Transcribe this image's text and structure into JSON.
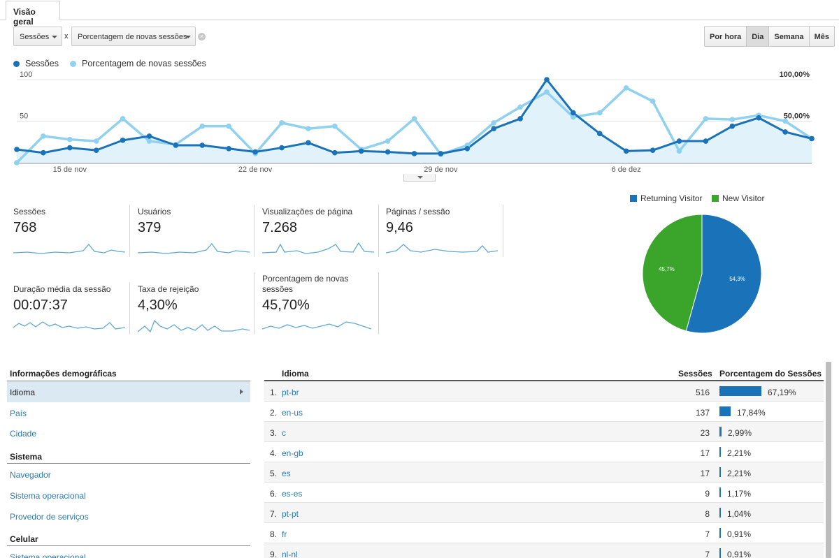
{
  "tab": {
    "label": "Visão geral"
  },
  "selectors": {
    "metric1": "Sessões",
    "separator": "x",
    "metric2": "Porcentagem de novas sessões"
  },
  "period_buttons": [
    "Por hora",
    "Dia",
    "Semana",
    "Mês"
  ],
  "period_active": "Dia",
  "legend": {
    "series1": "Sessões",
    "series2": "Porcentagem de novas sessões"
  },
  "colors": {
    "sessions": "#1a73b8",
    "new_sessions": "#8fd1ef",
    "new_visitor": "#3aa52a",
    "returning_visitor": "#1a73b8",
    "link": "#2a7ab0"
  },
  "chart_data": {
    "type": "line",
    "x": [
      "13 nov",
      "14 nov",
      "15 nov",
      "16 nov",
      "17 nov",
      "18 nov",
      "19 nov",
      "20 nov",
      "21 nov",
      "22 nov",
      "23 nov",
      "24 nov",
      "25 nov",
      "26 nov",
      "27 nov",
      "28 nov",
      "29 nov",
      "30 nov",
      "1 dez",
      "2 dez",
      "3 dez",
      "4 dez",
      "5 dez",
      "6 dez",
      "7 dez",
      "8 dez",
      "9 dez",
      "10 dez",
      "11 dez",
      "12 dez",
      "13 dez"
    ],
    "x_tick_labels": [
      "15 de nov",
      "22 de nov",
      "29 de nov",
      "6 de dez"
    ],
    "left_axis_labels": [
      "100",
      "50"
    ],
    "right_axis_labels": [
      "100,00%",
      "50,00%"
    ],
    "ylim_left": [
      0,
      100
    ],
    "ylim_right": [
      0,
      100
    ],
    "series": [
      {
        "name": "Sessões",
        "axis": "left",
        "values": [
          16,
          12,
          18,
          15,
          27,
          32,
          21,
          21,
          17,
          13,
          18,
          24,
          12,
          14,
          13,
          11,
          11,
          17,
          41,
          53,
          100,
          60,
          35,
          14,
          15,
          26,
          26,
          44,
          54,
          37,
          29
        ]
      },
      {
        "name": "Porcentagem de novas sessões",
        "axis": "right",
        "values": [
          0,
          32,
          28,
          26,
          53,
          26,
          22,
          44,
          44,
          11,
          48,
          41,
          44,
          16,
          26,
          53,
          10,
          21,
          48,
          67,
          85,
          55,
          60,
          90,
          74,
          14,
          53,
          52,
          57,
          50,
          29
        ]
      }
    ]
  },
  "metrics": [
    {
      "label": "Sessões",
      "value": "768"
    },
    {
      "label": "Usuários",
      "value": "379"
    },
    {
      "label": "Visualizações de página",
      "value": "7.268"
    },
    {
      "label": "Páginas / sessão",
      "value": "9,46"
    },
    {
      "label": "Duração média da sessão",
      "value": "00:07:37"
    },
    {
      "label": "Taxa de rejeição",
      "value": "4,30%"
    },
    {
      "label": "Porcentagem de novas sessões",
      "value": "45,70%"
    }
  ],
  "pie": {
    "legend": [
      "Returning Visitor",
      "New Visitor"
    ],
    "slices": [
      {
        "name": "Returning Visitor",
        "value": 54.3,
        "label": "54,3%"
      },
      {
        "name": "New Visitor",
        "value": 45.7,
        "label": "45,7%"
      }
    ]
  },
  "nav": {
    "section1": "Informações demográficas",
    "section1_items": [
      "Idioma",
      "País",
      "Cidade"
    ],
    "section2": "Sistema",
    "section2_items": [
      "Navegador",
      "Sistema operacional",
      "Provedor de serviços"
    ],
    "section3": "Celular",
    "section3_items": [
      "Sistema operacional"
    ]
  },
  "table": {
    "headers": {
      "col1": "Idioma",
      "col2": "Sessões",
      "col3": "Porcentagem do Sessões"
    },
    "rows": [
      {
        "num": "1.",
        "lang": "pt-br",
        "sessions": "516",
        "pct": "67,19%",
        "share": 67.19
      },
      {
        "num": "2.",
        "lang": "en-us",
        "sessions": "137",
        "pct": "17,84%",
        "share": 17.84
      },
      {
        "num": "3.",
        "lang": "c",
        "sessions": "23",
        "pct": "2,99%",
        "share": 2.99
      },
      {
        "num": "4.",
        "lang": "en-gb",
        "sessions": "17",
        "pct": "2,21%",
        "share": 2.21
      },
      {
        "num": "5.",
        "lang": "es",
        "sessions": "17",
        "pct": "2,21%",
        "share": 2.21
      },
      {
        "num": "6.",
        "lang": "es-es",
        "sessions": "9",
        "pct": "1,17%",
        "share": 1.17
      },
      {
        "num": "7.",
        "lang": "pt-pt",
        "sessions": "8",
        "pct": "1,04%",
        "share": 1.04
      },
      {
        "num": "8.",
        "lang": "fr",
        "sessions": "7",
        "pct": "0,91%",
        "share": 0.91
      },
      {
        "num": "9.",
        "lang": "nl-nl",
        "sessions": "7",
        "pct": "0,91%",
        "share": 0.91
      }
    ]
  }
}
